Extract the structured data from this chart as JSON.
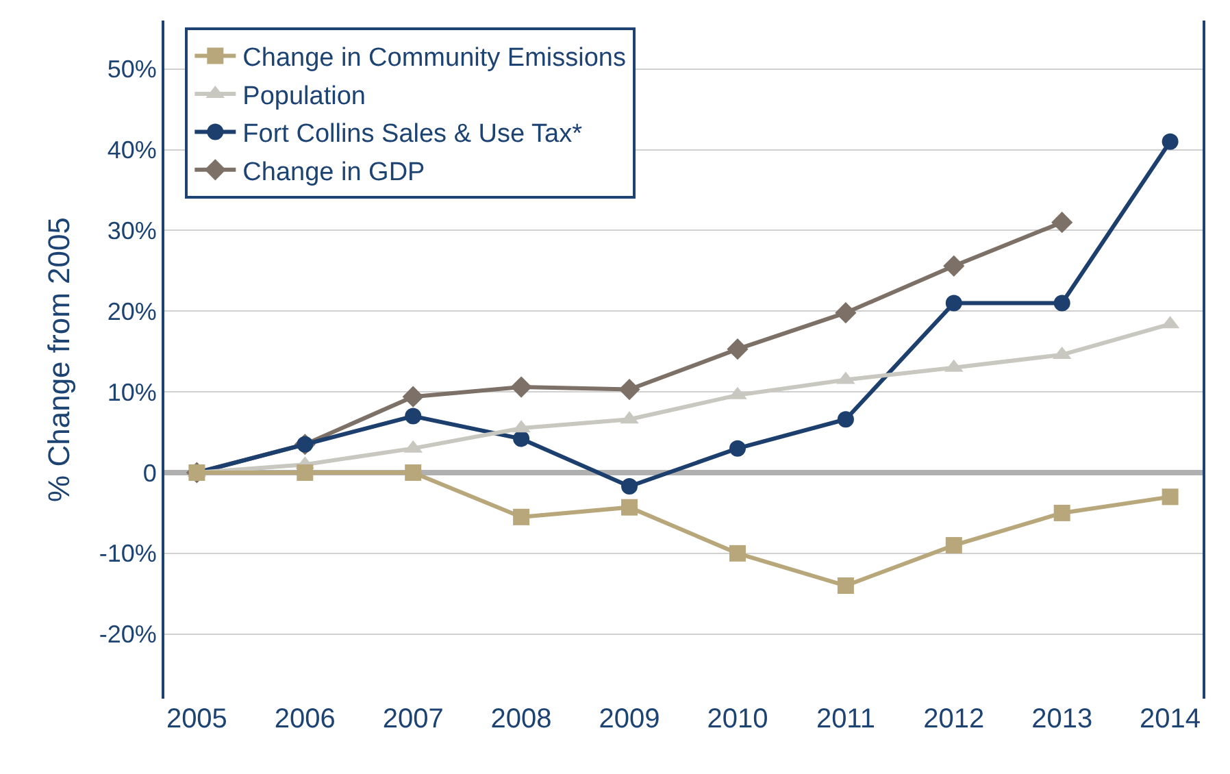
{
  "chart_data": {
    "type": "line",
    "ylabel": "% Change from 2005",
    "categories": [
      "2005",
      "2006",
      "2007",
      "2008",
      "2009",
      "2010",
      "2011",
      "2012",
      "2013",
      "2014"
    ],
    "series": [
      {
        "name": "Change in Community Emissions",
        "color": "#b8a77a",
        "marker": "square",
        "values": [
          0,
          0,
          0,
          -5.5,
          -4.3,
          -10,
          -14,
          -9,
          -5,
          -3
        ]
      },
      {
        "name": "Population",
        "color": "#c8c8c0",
        "marker": "triangle",
        "values": [
          0,
          1,
          3,
          5.5,
          6.6,
          9.6,
          11.5,
          13,
          14.6,
          18.4
        ]
      },
      {
        "name": "Fort Collins Sales & Use Tax*",
        "color": "#1c3f6e",
        "marker": "circle",
        "values": [
          0,
          3.5,
          7,
          4.2,
          -1.7,
          3,
          6.6,
          21,
          21,
          41
        ]
      },
      {
        "name": "Change in GDP",
        "color": "#7d7066",
        "marker": "diamond",
        "values": [
          0,
          3.5,
          9.4,
          10.6,
          10.3,
          15.3,
          19.8,
          25.6,
          31,
          null
        ]
      }
    ],
    "ylim": [
      -28,
      56
    ],
    "yticks": [
      {
        "value": -20,
        "label": "-20%"
      },
      {
        "value": -10,
        "label": "-10%"
      },
      0,
      {
        "value": 10,
        "label": "10%"
      },
      {
        "value": 20,
        "label": "20%"
      },
      {
        "value": 30,
        "label": "30%"
      },
      {
        "value": 40,
        "label": "40%"
      },
      {
        "value": 50,
        "label": "50%"
      }
    ],
    "grid": "y",
    "legend": "top left",
    "line_style": "solid"
  }
}
